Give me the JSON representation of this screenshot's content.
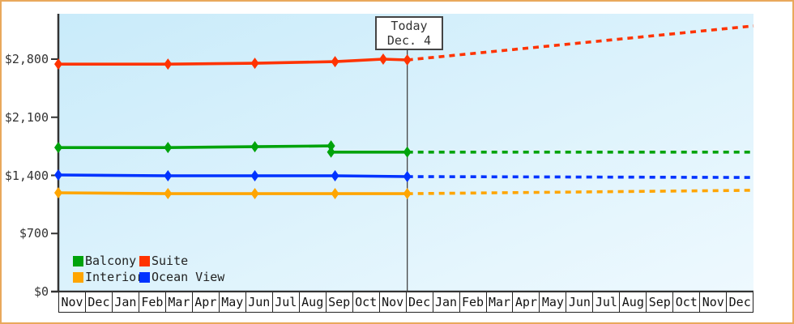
{
  "frame": {
    "border_color": "#e9a85c",
    "background": "#ffffff"
  },
  "chart_data": {
    "type": "line",
    "title": "",
    "xlabel": "",
    "ylabel": "",
    "x_axis": {
      "months": [
        "Nov",
        "Dec",
        "Jan",
        "Feb",
        "Mar",
        "Apr",
        "May",
        "Jun",
        "Jul",
        "Aug",
        "Sep",
        "Oct",
        "Nov",
        "Dec",
        "Jan",
        "Feb",
        "Mar",
        "Apr",
        "May",
        "Jun",
        "Jul",
        "Aug",
        "Sep",
        "Oct",
        "Nov",
        "Dec"
      ]
    },
    "y_axis": {
      "ticks": [
        {
          "value": 0,
          "label": "$0"
        },
        {
          "value": 700,
          "label": "$700"
        },
        {
          "value": 1400,
          "label": "$1,400"
        },
        {
          "value": 2100,
          "label": "$2,100"
        },
        {
          "value": 2800,
          "label": "$2,800"
        }
      ],
      "range": [
        0,
        3350
      ],
      "grid": false
    },
    "today": {
      "label": "Today",
      "date": "Dec. 4",
      "month_offset": 13.05
    },
    "plot_background": {
      "from": "#c9ebfa",
      "to": "#eef9fe"
    },
    "axis_color": "#333333",
    "today_line_color": "#444444",
    "legend_position": "bottom-left-inside",
    "series": [
      {
        "name": "Balcony",
        "color": "#00a30b",
        "history": [
          [
            0,
            1735
          ],
          [
            4.1,
            1735
          ],
          [
            7.35,
            1745
          ],
          [
            10.2,
            1755
          ],
          [
            10.2,
            1680
          ],
          [
            13.05,
            1680
          ]
        ],
        "forecast": [
          [
            13.05,
            1680
          ],
          [
            26,
            1680
          ]
        ]
      },
      {
        "name": "Suite",
        "color": "#ff3300",
        "history": [
          [
            0,
            2740
          ],
          [
            4.1,
            2740
          ],
          [
            7.35,
            2750
          ],
          [
            10.35,
            2770
          ],
          [
            12.15,
            2800
          ],
          [
            13.05,
            2790
          ]
        ],
        "forecast": [
          [
            13.05,
            2790
          ],
          [
            26,
            3200
          ]
        ]
      },
      {
        "name": "Interior",
        "color": "#ffa500",
        "history": [
          [
            0,
            1190
          ],
          [
            4.1,
            1180
          ],
          [
            7.35,
            1180
          ],
          [
            10.35,
            1180
          ],
          [
            13.05,
            1180
          ]
        ],
        "forecast": [
          [
            13.05,
            1180
          ],
          [
            26,
            1220
          ]
        ]
      },
      {
        "name": "Ocean View",
        "color": "#0033ff",
        "history": [
          [
            0,
            1405
          ],
          [
            4.1,
            1395
          ],
          [
            7.35,
            1395
          ],
          [
            10.35,
            1395
          ],
          [
            13.05,
            1385
          ]
        ],
        "forecast": [
          [
            13.05,
            1385
          ],
          [
            26,
            1375
          ]
        ]
      }
    ]
  }
}
